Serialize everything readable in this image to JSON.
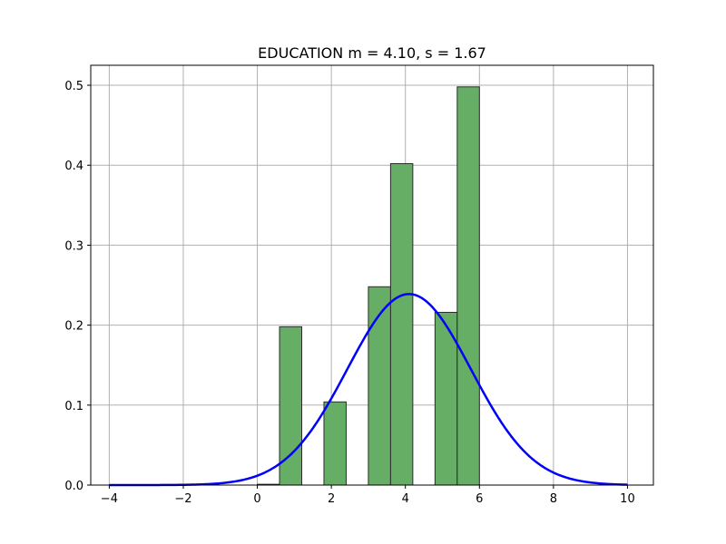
{
  "chart_data": {
    "type": "bar",
    "title": "EDUCATION  m = 4.10,  s = 1.67",
    "xlabel": "",
    "ylabel": "",
    "xlim": [
      -4.5,
      10.7
    ],
    "ylim": [
      0,
      0.525
    ],
    "grid": true,
    "x_ticks": [
      -4,
      -2,
      0,
      2,
      4,
      6,
      8,
      10
    ],
    "x_tick_labels": [
      "−4",
      "−2",
      "0",
      "2",
      "4",
      "6",
      "8",
      "10"
    ],
    "y_ticks": [
      0.0,
      0.1,
      0.2,
      0.3,
      0.4,
      0.5
    ],
    "y_tick_labels": [
      "0.0",
      "0.1",
      "0.2",
      "0.3",
      "0.4",
      "0.5"
    ],
    "histogram": {
      "bar_color": "#66AE66",
      "edge_color": "#2b2b2b",
      "bins": [
        {
          "x0": 0.0,
          "x1": 0.6,
          "value": 0.001
        },
        {
          "x0": 0.6,
          "x1": 1.2,
          "value": 0.198
        },
        {
          "x0": 1.8,
          "x1": 2.4,
          "value": 0.104
        },
        {
          "x0": 3.0,
          "x1": 3.6,
          "value": 0.248
        },
        {
          "x0": 3.6,
          "x1": 4.2,
          "value": 0.402
        },
        {
          "x0": 4.8,
          "x1": 5.4,
          "value": 0.216
        },
        {
          "x0": 5.4,
          "x1": 6.0,
          "value": 0.498
        }
      ]
    },
    "normal_curve": {
      "mean": 4.1,
      "std": 1.67,
      "x_range": [
        -4,
        10
      ],
      "color": "#0000ff"
    }
  }
}
